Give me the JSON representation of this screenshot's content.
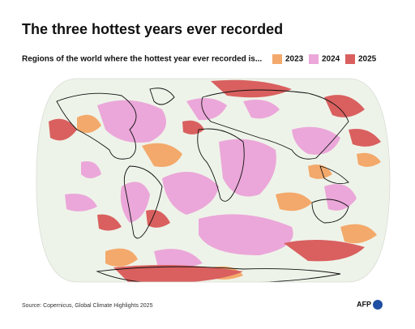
{
  "header": {
    "title": "The three hottest years ever recorded",
    "subtitle": "Regions of the world where the hottest year ever recorded is..."
  },
  "legend": [
    {
      "label": "2023",
      "color": "#f3a96b"
    },
    {
      "label": "2024",
      "color": "#eba7d9"
    },
    {
      "label": "2025",
      "color": "#d9605f"
    }
  ],
  "footer": {
    "source": "Source: Copernicus, Global Climate Highlights 2025",
    "logo": "AFP"
  }
}
